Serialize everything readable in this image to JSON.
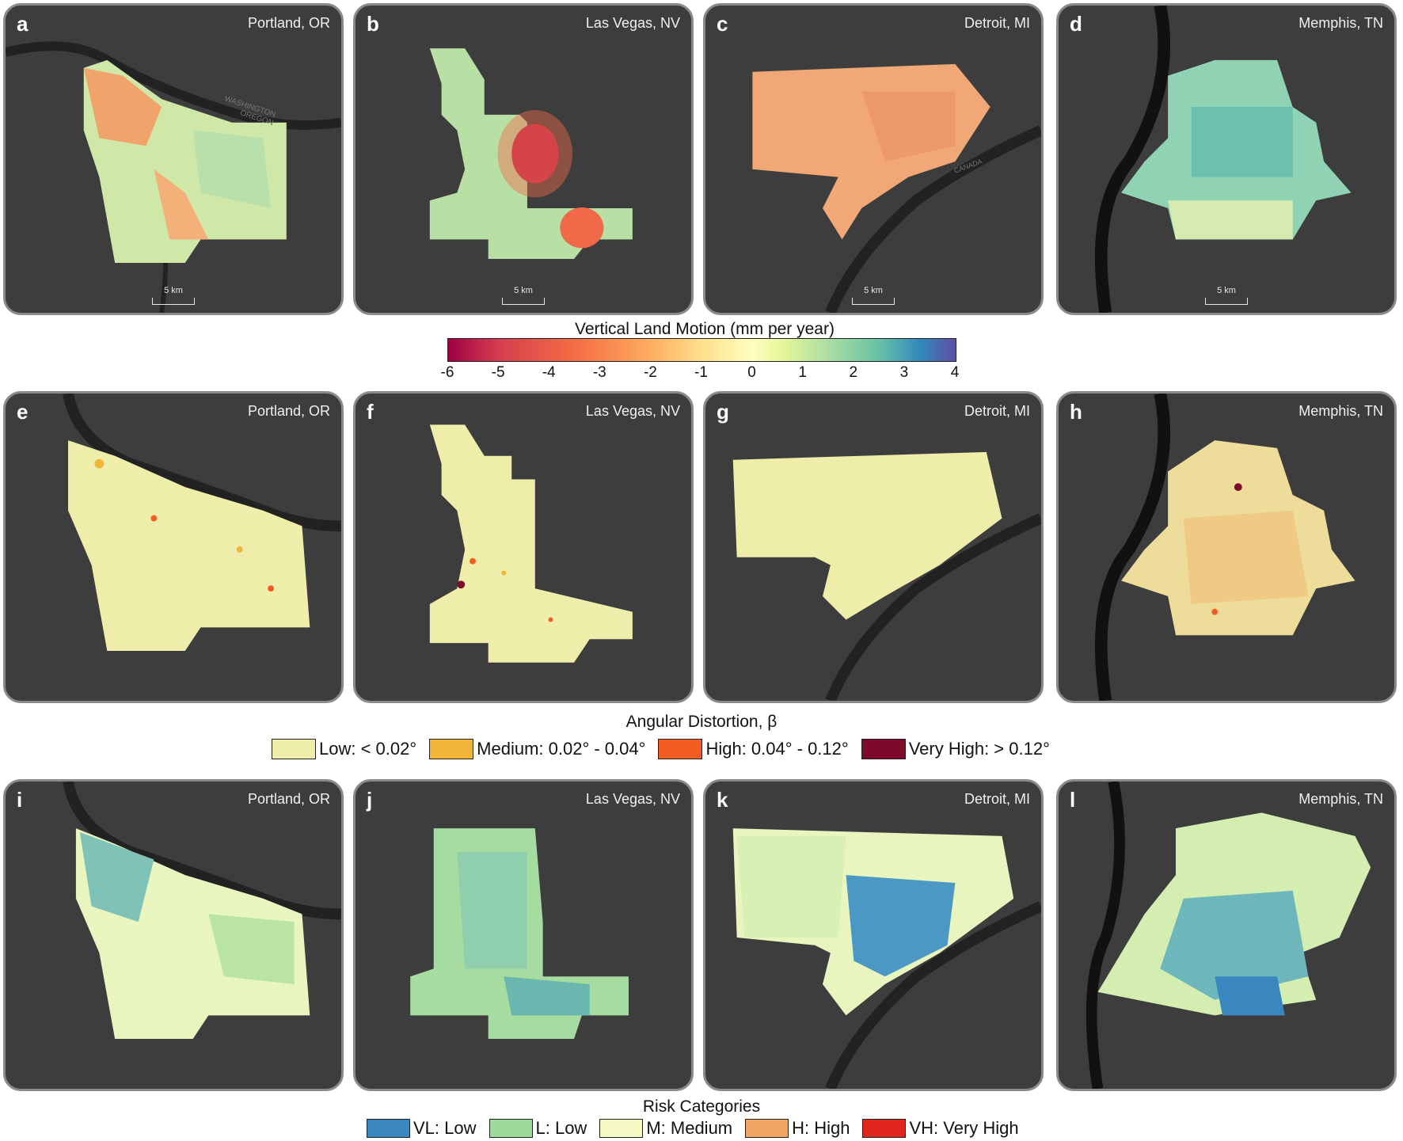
{
  "panels": [
    {
      "letter": "a",
      "city": "Portland, OR",
      "scale": "5 km",
      "map_labels": [
        "WASHINGTON",
        "OREGON"
      ]
    },
    {
      "letter": "b",
      "city": "Las Vegas, NV",
      "scale": "5 km"
    },
    {
      "letter": "c",
      "city": "Detroit, MI",
      "scale": "5 km",
      "map_labels": [
        "CANADA"
      ]
    },
    {
      "letter": "d",
      "city": "Memphis, TN",
      "scale": "5 km"
    },
    {
      "letter": "e",
      "city": "Portland, OR"
    },
    {
      "letter": "f",
      "city": "Las Vegas, NV"
    },
    {
      "letter": "g",
      "city": "Detroit, MI"
    },
    {
      "letter": "h",
      "city": "Memphis, TN"
    },
    {
      "letter": "i",
      "city": "Portland, OR"
    },
    {
      "letter": "j",
      "city": "Las Vegas, NV"
    },
    {
      "letter": "k",
      "city": "Detroit, MI"
    },
    {
      "letter": "l",
      "city": "Memphis, TN"
    }
  ],
  "vlm_legend": {
    "title": "Vertical Land Motion (mm per year)",
    "ticks": [
      "-6",
      "-5",
      "-4",
      "-3",
      "-2",
      "-1",
      "0",
      "1",
      "2",
      "3",
      "4"
    ],
    "range": [
      -6,
      4
    ],
    "colors": [
      "#9e0142",
      "#f46d43",
      "#fee08b",
      "#ffffbf",
      "#abdda4",
      "#3288bd",
      "#5e4fa2"
    ]
  },
  "angular_legend": {
    "title": "Angular Distortion, β",
    "items": [
      {
        "label": "Low: < 0.02°",
        "color": "#eeeeaa"
      },
      {
        "label": "Medium: 0.02° - 0.04°",
        "color": "#f0b63a"
      },
      {
        "label": "High: 0.04° - 0.12°",
        "color": "#f55c24"
      },
      {
        "label": "Very High: > 0.12°",
        "color": "#7d0a2a"
      }
    ]
  },
  "risk_legend": {
    "title": "Risk Categories",
    "items": [
      {
        "label": "VL: Low",
        "color": "#3a86bf"
      },
      {
        "label": "L: Low",
        "color": "#9edb9a"
      },
      {
        "label": "M: Medium",
        "color": "#f4f9c4"
      },
      {
        "label": "H: High",
        "color": "#f0a565"
      },
      {
        "label": "VH: Very High",
        "color": "#e0261c"
      }
    ]
  }
}
